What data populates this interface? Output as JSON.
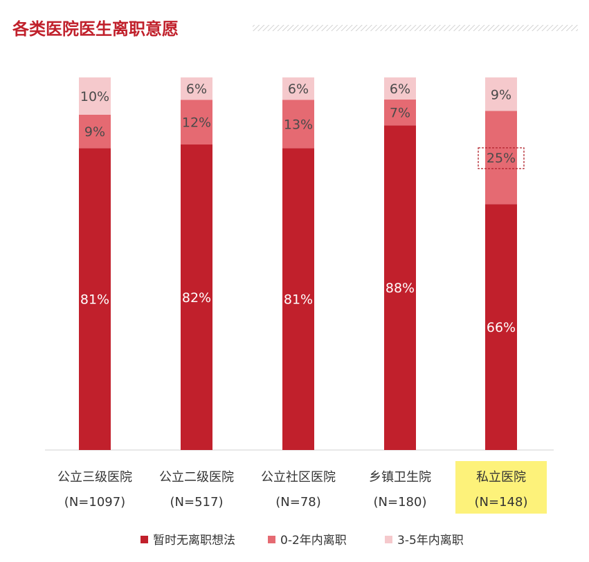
{
  "chart_data": {
    "type": "bar",
    "stacked": true,
    "normalized": true,
    "title": "各类医院医生离职意愿",
    "categories": [
      "公立三级医院",
      "公立二级医院",
      "公立社区医院",
      "乡镇卫生院",
      "私立医院"
    ],
    "sample_sizes": [
      "(N=1097)",
      "(N=517)",
      "(N=78)",
      "(N=180)",
      "(N=148)"
    ],
    "highlighted_category": "私立医院",
    "highlighted_label": "25%",
    "series": [
      {
        "name": "暂时无离职想法",
        "color": "#c1202c",
        "values": [
          81,
          82,
          81,
          88,
          66
        ]
      },
      {
        "name": "0-2年内离职",
        "color": "#e56a72",
        "values": [
          9,
          12,
          13,
          7,
          25
        ]
      },
      {
        "name": "3-5年内离职",
        "color": "#f5c9cc",
        "values": [
          10,
          6,
          6,
          6,
          9
        ]
      }
    ],
    "value_format": "{v}%",
    "legend_position": "bottom-center",
    "grid": false
  },
  "colors": {
    "title": "#c0202b",
    "highlight_background": "#fdf27a",
    "text": "#333333"
  }
}
